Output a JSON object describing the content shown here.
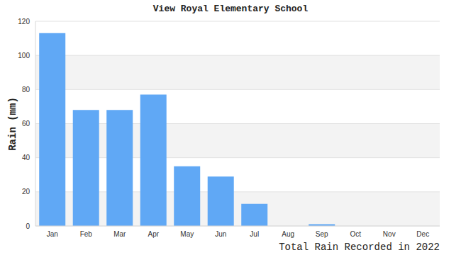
{
  "chart_data": {
    "type": "bar",
    "title": "View Royal Elementary School",
    "y_label": "Rain (mm)",
    "x_label": "Total Rain Recorded in 2022",
    "categories": [
      "Jan",
      "Feb",
      "Mar",
      "Apr",
      "May",
      "Jun",
      "Jul",
      "Aug",
      "Sep",
      "Oct",
      "Nov",
      "Dec"
    ],
    "values": [
      113,
      68,
      68,
      77,
      35,
      29,
      13,
      0,
      1,
      0,
      0,
      0
    ],
    "color": "#60a8f5",
    "ylim": [
      0,
      120
    ],
    "yticks": [
      0,
      20,
      40,
      60,
      80,
      100,
      120
    ],
    "grid": true
  }
}
